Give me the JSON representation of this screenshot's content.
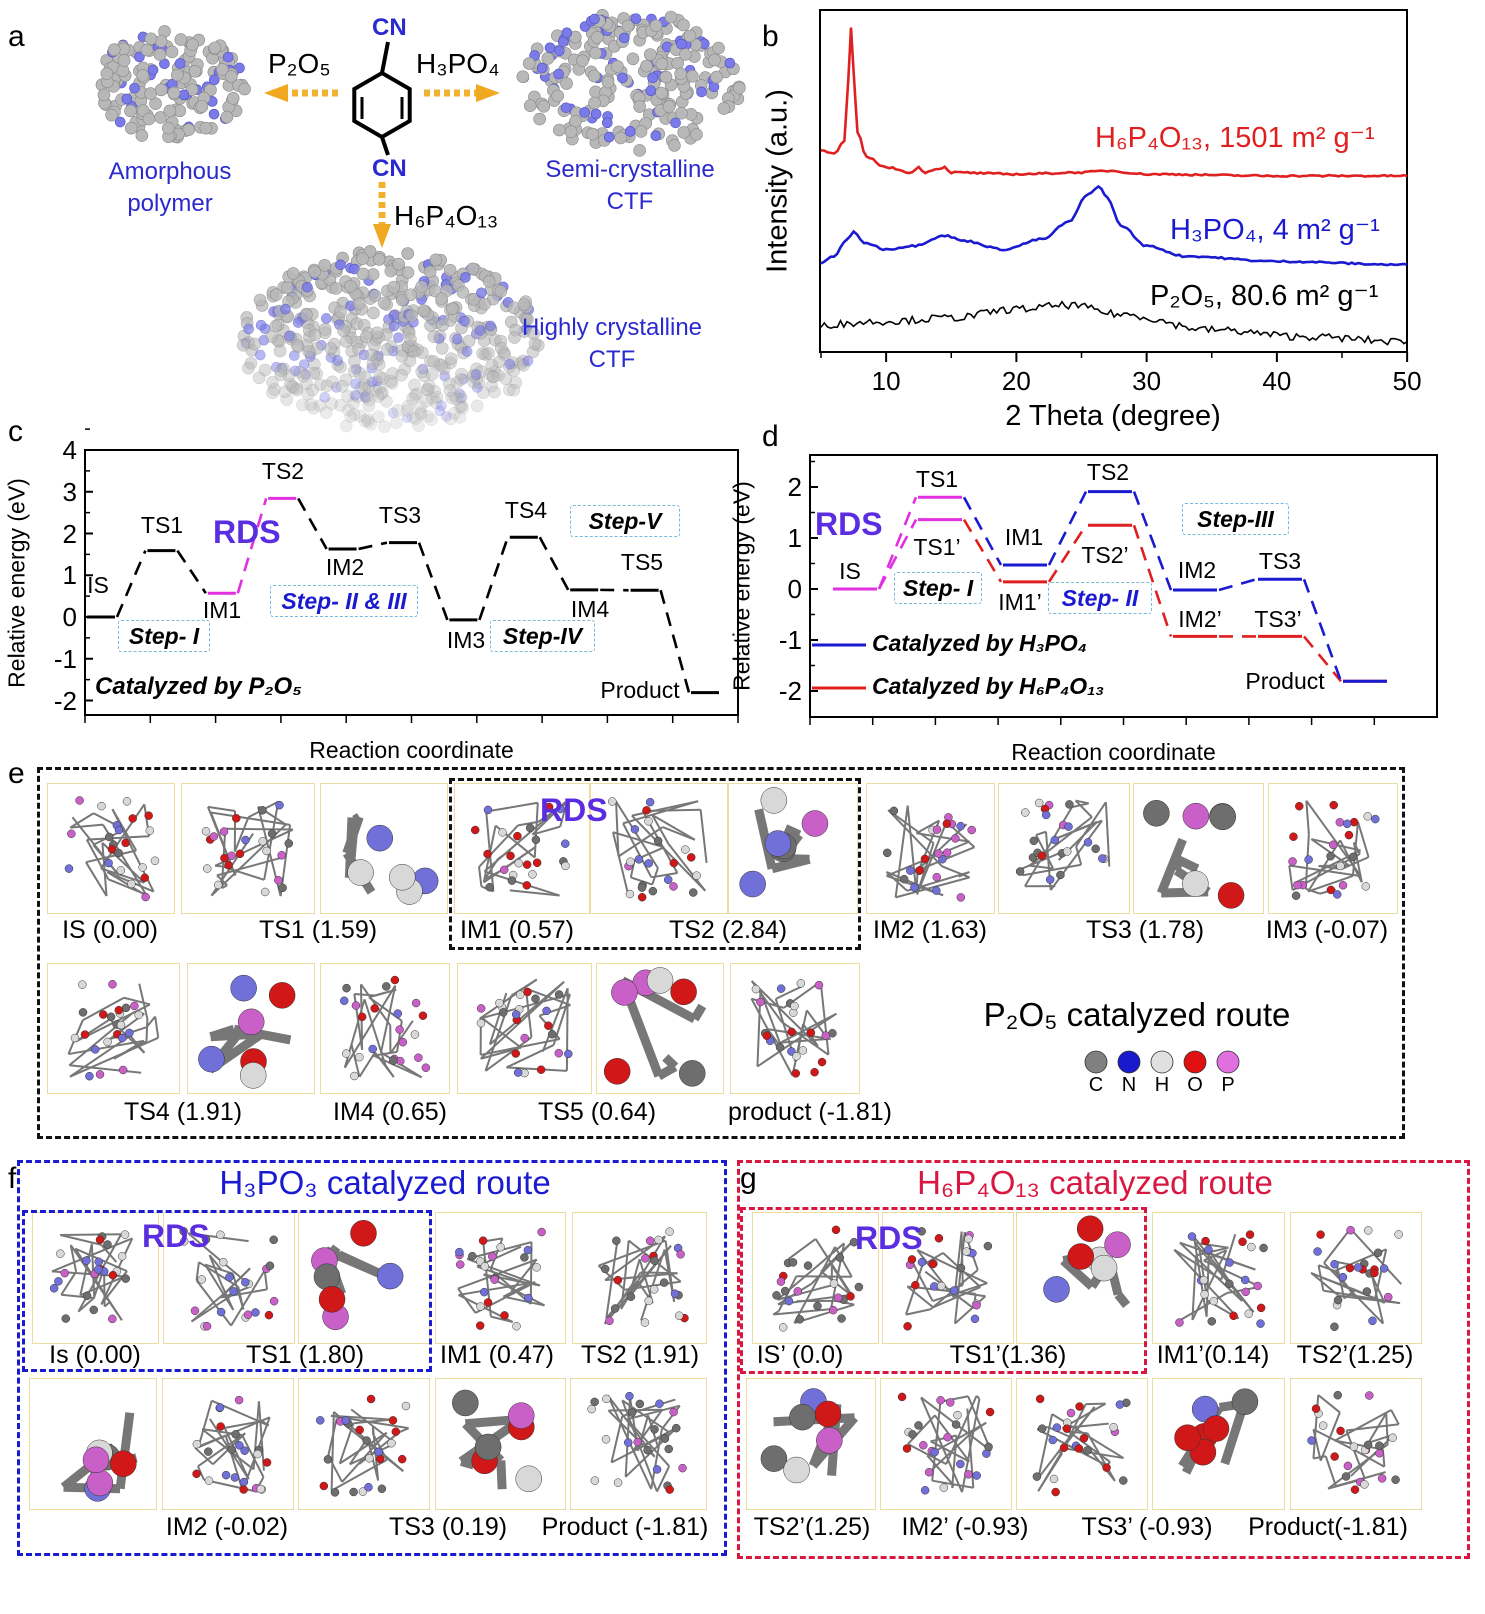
{
  "panel_labels": {
    "a": "a",
    "b": "b",
    "c": "c",
    "d": "d",
    "e": "e",
    "f": "f",
    "g": "g"
  },
  "panel_a": {
    "cn_top": "CN",
    "cn_bottom": "CN",
    "reagent_left": "P₂O₅",
    "reagent_right": "H₃PO₄",
    "reagent_down": "H₆P₄O₁₃",
    "product_left": [
      "Amorphous",
      "polymer"
    ],
    "product_right": [
      "Semi-crystalline",
      "CTF"
    ],
    "product_down": [
      "Highly crystalline",
      "CTF"
    ]
  },
  "chart_data": [
    {
      "panel": "b",
      "type": "line",
      "title": "",
      "xlabel": "2 Theta (degree)",
      "ylabel": "Intensity (a.u.)",
      "xlim": [
        5,
        50
      ],
      "ylim": [
        0,
        100
      ],
      "xticks": [
        10,
        20,
        30,
        40,
        50
      ],
      "series": [
        {
          "name": "H₆P₄O₁₃, 1501 m² g⁻¹",
          "color": "#e02020",
          "points": [
            [
              5,
              59
            ],
            [
              6,
              58
            ],
            [
              6.8,
              62
            ],
            [
              7.1,
              80
            ],
            [
              7.3,
              94.7
            ],
            [
              7.5,
              82
            ],
            [
              7.8,
              64
            ],
            [
              8.5,
              57
            ],
            [
              10,
              54
            ],
            [
              12,
              52.5
            ],
            [
              12.5,
              54
            ],
            [
              13,
              52.5
            ],
            [
              13.8,
              53.5
            ],
            [
              14.5,
              54
            ],
            [
              15,
              52.5
            ],
            [
              20,
              52
            ],
            [
              25,
              52.5
            ],
            [
              27,
              53
            ],
            [
              30,
              52
            ],
            [
              40,
              51.5
            ],
            [
              50,
              51.5
            ]
          ]
        },
        {
          "name": "H₃PO₄, 4 m² g⁻¹",
          "color": "#1a1ad0",
          "points": [
            [
              5,
              26
            ],
            [
              6,
              28
            ],
            [
              7,
              33
            ],
            [
              7.5,
              35
            ],
            [
              8.3,
              32
            ],
            [
              10,
              30
            ],
            [
              12,
              31
            ],
            [
              14.5,
              34
            ],
            [
              16,
              32.5
            ],
            [
              19,
              30
            ],
            [
              22,
              33
            ],
            [
              24,
              38
            ],
            [
              25.5,
              46
            ],
            [
              26.3,
              48.5
            ],
            [
              27,
              45
            ],
            [
              28,
              37
            ],
            [
              30,
              31
            ],
            [
              33,
              28
            ],
            [
              40,
              26.5
            ],
            [
              50,
              25.5
            ]
          ]
        },
        {
          "name": "P₂O₅, 80.6 m² g⁻¹",
          "color": "#000000",
          "points": [
            [
              5,
              8
            ],
            [
              10,
              9
            ],
            [
              15,
              10
            ],
            [
              20,
              12.5
            ],
            [
              24,
              13.7
            ],
            [
              28,
              11
            ],
            [
              35,
              6.5
            ],
            [
              42,
              4.5
            ],
            [
              50,
              3
            ]
          ]
        }
      ]
    },
    {
      "panel": "c",
      "type": "line",
      "title": "",
      "xlabel": "Reaction coordinate",
      "ylabel": "Relative energy (eV)",
      "ylim": [
        -2.5,
        4
      ],
      "yticks": [
        -2,
        -1,
        0,
        1,
        2,
        3,
        4
      ],
      "annotation": "Catalyzed by P₂O₅",
      "rds_label": "RDS",
      "steps": [
        "Step- I",
        "Step- II & III",
        "Step-IV",
        "Step-V"
      ],
      "series": [
        {
          "name": "P₂O₅",
          "color": "#000000",
          "labels": [
            "IS",
            "TS1",
            "IM1",
            "TS2",
            "IM2",
            "TS3",
            "IM3",
            "TS4",
            "IM4",
            "TS5",
            "Product"
          ],
          "values": [
            0,
            1.59,
            0.57,
            2.84,
            1.63,
            1.78,
            -0.07,
            1.91,
            0.65,
            0.64,
            -1.81
          ],
          "rds_color": "#e030e0",
          "rds_indices": [
            2,
            3
          ]
        }
      ]
    },
    {
      "panel": "d",
      "type": "line",
      "title": "",
      "xlabel": "Reaction coordinate",
      "ylabel": "Relative energy (eV)",
      "ylim": [
        -2.5,
        2.7
      ],
      "yticks": [
        -2,
        -1,
        0,
        1,
        2
      ],
      "rds_label": "RDS",
      "steps": [
        "Step- I",
        "Step- II",
        "Step-III"
      ],
      "legend": [
        "Catalyzed by H₃PO₄",
        "Catalyzed by H₆P₄O₁₃"
      ],
      "series": [
        {
          "name": "Catalyzed by H₃PO₄",
          "color": "#1a1ad0",
          "labels": [
            "IS",
            "TS1",
            "IM1",
            "TS2",
            "IM2",
            "TS3",
            "Product"
          ],
          "values": [
            0,
            1.8,
            0.47,
            1.91,
            -0.02,
            0.19,
            -1.81
          ]
        },
        {
          "name": "Catalyzed by H₆P₄O₁₃",
          "color": "#e02020",
          "labels": [
            "IS",
            "TS1’",
            "IM1’",
            "TS2’",
            "IM2’",
            "TS3’",
            "Product"
          ],
          "values": [
            0,
            1.36,
            0.14,
            1.25,
            -0.93,
            -0.93,
            -1.81
          ]
        }
      ],
      "rds_color": "#e030e0"
    }
  ],
  "panel_e": {
    "rds": "RDS",
    "title": "P₂O₅ catalyzed route",
    "labels": [
      "IS (0.00)",
      "TS1 (1.59)",
      "IM1 (0.57)",
      "TS2 (2.84)",
      "IM2 (1.63)",
      "TS3 (1.78)",
      "IM3 (-0.07)",
      "TS4 (1.91)",
      "IM4 (0.65)",
      "TS5 (0.64)",
      "product (-1.81)"
    ],
    "legend": [
      "C",
      "N",
      "H",
      "O",
      "P"
    ],
    "legend_colors": [
      "#808080",
      "#1a1acc",
      "#e0e0e0",
      "#e01010",
      "#e070e0"
    ]
  },
  "panel_f": {
    "title": "H₃PO₃ catalyzed route",
    "rds": "RDS",
    "labels": [
      "Is (0.00)",
      "TS1 (1.80)",
      "IM1 (0.47)",
      "TS2 (1.91)",
      "IM2 (-0.02)",
      "TS3 (0.19)",
      "Product (-1.81)"
    ]
  },
  "panel_g": {
    "title": "H₆P₄O₁₃ catalyzed route",
    "rds": "RDS",
    "labels": [
      "IS’ (0.0)",
      "TS1’(1.36)",
      "IM1’(0.14)",
      "TS2’(1.25)",
      "TS2’(1.25)",
      "IM2’ (-0.93)",
      "TS3’ (-0.93)",
      "Product(-1.81)"
    ]
  }
}
